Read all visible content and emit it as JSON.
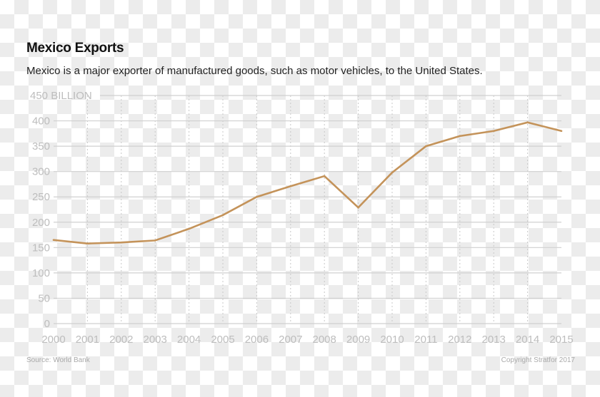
{
  "title": "Mexico Exports",
  "subtitle": "Mexico is a major exporter of manufactured goods, such as motor vehicles, to the United States.",
  "source": "Source: World Bank",
  "copyright": "Copyright Stratfor 2017",
  "chart_data": {
    "type": "line",
    "title": "Mexico Exports",
    "xlabel": "",
    "ylabel": "",
    "x": [
      2000,
      2001,
      2002,
      2003,
      2004,
      2005,
      2006,
      2007,
      2008,
      2009,
      2010,
      2011,
      2012,
      2013,
      2014,
      2015
    ],
    "series": [
      {
        "values": [
          165,
          158,
          160,
          164,
          187,
          214,
          250,
          271,
          291,
          229,
          298,
          350,
          370,
          380,
          397,
          380
        ],
        "color": "#c4935a"
      }
    ],
    "ylim": [
      0,
      450
    ],
    "yticks": [
      0,
      50,
      100,
      150,
      200,
      250,
      300,
      350,
      400,
      450
    ],
    "ytick_labels": [
      "0",
      "50",
      "100",
      "150",
      "200",
      "250",
      "300",
      "350",
      "400",
      "450 BILLION"
    ],
    "xtick_labels": [
      "2000",
      "2001",
      "2002",
      "2003",
      "2004",
      "2005",
      "2006",
      "2007",
      "2008",
      "2009",
      "2010",
      "2011",
      "2012",
      "2013",
      "2014",
      "2015"
    ],
    "grid": {
      "horizontal": "solid",
      "vertical": "dotted"
    }
  }
}
